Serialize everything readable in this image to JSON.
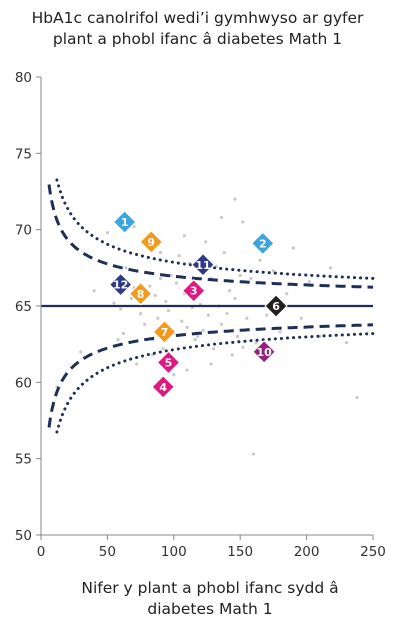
{
  "chart_data": {
    "type": "scatter",
    "title_lines": [
      "HbA1c canolrifol wedi’i gymhwyso ar gyfer",
      "plant a phobl ifanc â diabetes Math 1"
    ],
    "xlabel_lines": [
      "Nifer y plant a phobl ifanc sydd â",
      "diabetes Math 1"
    ],
    "ylabel": "",
    "xlim": [
      0,
      250
    ],
    "ylim": [
      50,
      80
    ],
    "x_ticks": [
      0,
      50,
      100,
      150,
      200,
      250
    ],
    "y_ticks": [
      50,
      55,
      60,
      65,
      70,
      75,
      80
    ],
    "grid": false,
    "target_line": 65,
    "funnel_inner_coef": 19.5,
    "funnel_outer_coef": 28.6,
    "highlighted_units": [
      {
        "label": "1",
        "x": 63,
        "y": 70.5,
        "color": "#3aa6dd"
      },
      {
        "label": "2",
        "x": 167,
        "y": 69.1,
        "color": "#3aa6dd"
      },
      {
        "label": "3",
        "x": 115,
        "y": 66.0,
        "color": "#e0177f"
      },
      {
        "label": "4",
        "x": 92,
        "y": 59.7,
        "color": "#e0177f"
      },
      {
        "label": "5",
        "x": 96,
        "y": 61.3,
        "color": "#e0177f"
      },
      {
        "label": "6",
        "x": 177,
        "y": 65.0,
        "color": "#231f20"
      },
      {
        "label": "7",
        "x": 93,
        "y": 63.3,
        "color": "#f39a1e"
      },
      {
        "label": "8",
        "x": 75,
        "y": 65.8,
        "color": "#f39a1e"
      },
      {
        "label": "9",
        "x": 83,
        "y": 69.2,
        "color": "#f39a1e"
      },
      {
        "label": "10",
        "x": 168,
        "y": 62.0,
        "color": "#96207f"
      },
      {
        "label": "11",
        "x": 122,
        "y": 67.7,
        "color": "#2e3a87"
      },
      {
        "label": "12",
        "x": 60,
        "y": 66.4,
        "color": "#2e3a87"
      }
    ],
    "background_points": [
      [
        12,
        59.7
      ],
      [
        30,
        62.0
      ],
      [
        40,
        66.0
      ],
      [
        50,
        69.8
      ],
      [
        55,
        65.2
      ],
      [
        58,
        62.8
      ],
      [
        60,
        64.8
      ],
      [
        62,
        63.2
      ],
      [
        64,
        67.5
      ],
      [
        68,
        65.5
      ],
      [
        70,
        66.2
      ],
      [
        72,
        61.2
      ],
      [
        75,
        64.5
      ],
      [
        78,
        63.8
      ],
      [
        80,
        67.2
      ],
      [
        82,
        66.3
      ],
      [
        84,
        62.8
      ],
      [
        86,
        65.7
      ],
      [
        88,
        64.2
      ],
      [
        90,
        66.8
      ],
      [
        92,
        62.2
      ],
      [
        94,
        65.3
      ],
      [
        96,
        64.7
      ],
      [
        98,
        67.0
      ],
      [
        100,
        63.2
      ],
      [
        102,
        66.5
      ],
      [
        104,
        68.3
      ],
      [
        106,
        64.0
      ],
      [
        108,
        65.8
      ],
      [
        110,
        63.6
      ],
      [
        112,
        67.8
      ],
      [
        114,
        64.9
      ],
      [
        116,
        62.8
      ],
      [
        118,
        66.2
      ],
      [
        120,
        65.1
      ],
      [
        122,
        63.4
      ],
      [
        124,
        69.2
      ],
      [
        126,
        64.4
      ],
      [
        128,
        66.8
      ],
      [
        130,
        62.2
      ],
      [
        132,
        67.6
      ],
      [
        134,
        65.0
      ],
      [
        136,
        63.8
      ],
      [
        138,
        68.5
      ],
      [
        140,
        64.5
      ],
      [
        142,
        66.0
      ],
      [
        144,
        61.8
      ],
      [
        146,
        65.5
      ],
      [
        148,
        63.0
      ],
      [
        150,
        67.0
      ],
      [
        152,
        70.5
      ],
      [
        155,
        64.2
      ],
      [
        158,
        66.8
      ],
      [
        162,
        62.6
      ],
      [
        165,
        68.0
      ],
      [
        170,
        64.4
      ],
      [
        175,
        67.3
      ],
      [
        180,
        63.3
      ],
      [
        185,
        65.8
      ],
      [
        190,
        68.8
      ],
      [
        196,
        64.2
      ],
      [
        202,
        66.6
      ],
      [
        210,
        63.0
      ],
      [
        218,
        67.5
      ],
      [
        230,
        62.6
      ],
      [
        238,
        59.0
      ],
      [
        146,
        72.0
      ],
      [
        160,
        55.3
      ],
      [
        100,
        60.5
      ],
      [
        110,
        60.8
      ],
      [
        128,
        61.2
      ],
      [
        90,
        68.5
      ],
      [
        70,
        70.2
      ],
      [
        136,
        70.8
      ],
      [
        108,
        69.6
      ],
      [
        152,
        62.3
      ],
      [
        84,
        61.8
      ],
      [
        118,
        63.0
      ]
    ]
  }
}
